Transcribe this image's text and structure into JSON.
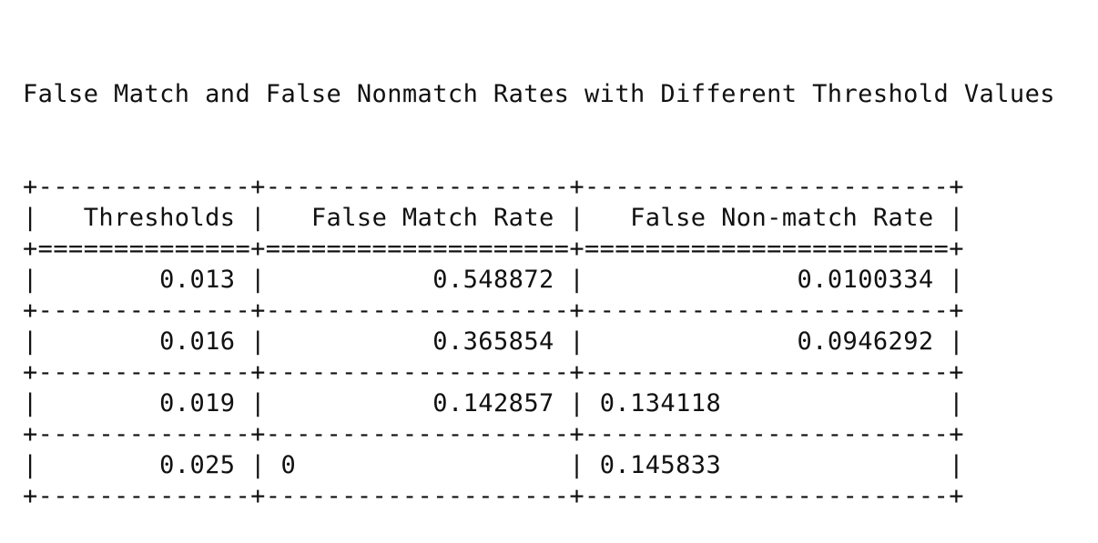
{
  "title": "False Match and False Nonmatch Rates with Different Threshold Values",
  "table": {
    "columns": [
      "Thresholds",
      "False Match Rate",
      "False Non-match Rate"
    ],
    "rows": [
      [
        "0.013",
        "0.548872",
        "0.0100334"
      ],
      [
        "0.016",
        "0.365854",
        "0.0946292"
      ],
      [
        "0.019",
        "0.142857",
        "0.134118"
      ],
      [
        "0.025",
        "0",
        "0.145833"
      ]
    ]
  }
}
